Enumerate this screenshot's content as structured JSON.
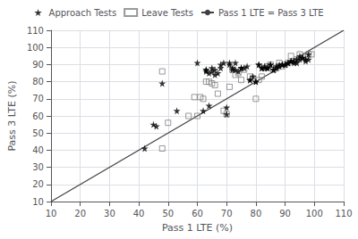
{
  "chart_data": {
    "type": "scatter",
    "xlabel": "Pass 1 LTE (%)",
    "ylabel": "Pass 3 LTE (%)",
    "xlim": [
      10,
      110
    ],
    "ylim": [
      10,
      110
    ],
    "xticks": [
      10,
      20,
      30,
      40,
      50,
      60,
      70,
      80,
      90,
      100,
      110
    ],
    "yticks": [
      10,
      20,
      30,
      40,
      50,
      60,
      70,
      80,
      90,
      100,
      110
    ],
    "grid": true,
    "legend": "top",
    "series": [
      {
        "name": "Approach Tests",
        "type": "scatter",
        "marker": "star",
        "color": "#000000",
        "x": [
          42,
          45,
          46,
          48,
          53,
          60,
          62,
          63,
          63,
          64,
          65,
          66,
          67,
          68,
          69,
          70,
          71,
          72,
          73,
          74,
          75,
          76,
          77,
          78,
          79,
          80,
          81,
          82,
          83,
          84,
          85,
          86,
          87,
          88,
          89,
          90,
          91,
          92,
          93,
          94,
          95,
          96,
          97,
          98,
          63,
          64,
          65,
          66,
          68,
          70,
          71,
          72,
          73,
          75,
          78,
          80,
          81,
          82,
          83,
          84,
          85,
          86,
          87,
          88,
          89,
          90,
          91,
          92,
          93,
          94,
          95,
          96,
          97,
          98
        ],
        "values": [
          41,
          55,
          54,
          79,
          63,
          91,
          63,
          87,
          86,
          66,
          86,
          84,
          85,
          88,
          91,
          61,
          90,
          88,
          87,
          86,
          88,
          88,
          89,
          81,
          83,
          80,
          90,
          88,
          89,
          88,
          90,
          87,
          88,
          89,
          90,
          90,
          91,
          92,
          92,
          91,
          93,
          94,
          92,
          93,
          87,
          85,
          88,
          87,
          90,
          65,
          91,
          87,
          91,
          88,
          81,
          80,
          90,
          88,
          88,
          88,
          90,
          87,
          89,
          90,
          90,
          90,
          91,
          92,
          91,
          93,
          95,
          94,
          93,
          96
        ]
      },
      {
        "name": "Leave Tests",
        "type": "scatter",
        "marker": "open_square",
        "color": "#808080",
        "x": [
          48,
          48,
          50,
          57,
          59,
          60,
          61,
          62,
          63,
          64,
          65,
          66,
          67,
          69,
          70,
          71,
          72,
          73,
          74,
          75,
          76,
          78,
          79,
          80,
          81,
          82,
          83,
          84,
          85,
          86,
          87,
          88,
          89,
          90,
          91,
          92,
          93,
          94,
          95,
          96,
          97,
          98,
          99
        ],
        "values": [
          41,
          86,
          56,
          60,
          71,
          60,
          71,
          70,
          80,
          80,
          79,
          78,
          73,
          63,
          61,
          77,
          87,
          84,
          85,
          81,
          87,
          83,
          82,
          70,
          81,
          83,
          88,
          89,
          90,
          87,
          88,
          91,
          89,
          90,
          91,
          95,
          92,
          93,
          96,
          94,
          95,
          96,
          96
        ]
      },
      {
        "name": "Pass 1 LTE = Pass 3 LTE",
        "type": "line",
        "line_style": "solid",
        "color": "#404040",
        "x": [
          10,
          110
        ],
        "values": [
          10,
          110
        ]
      }
    ]
  }
}
